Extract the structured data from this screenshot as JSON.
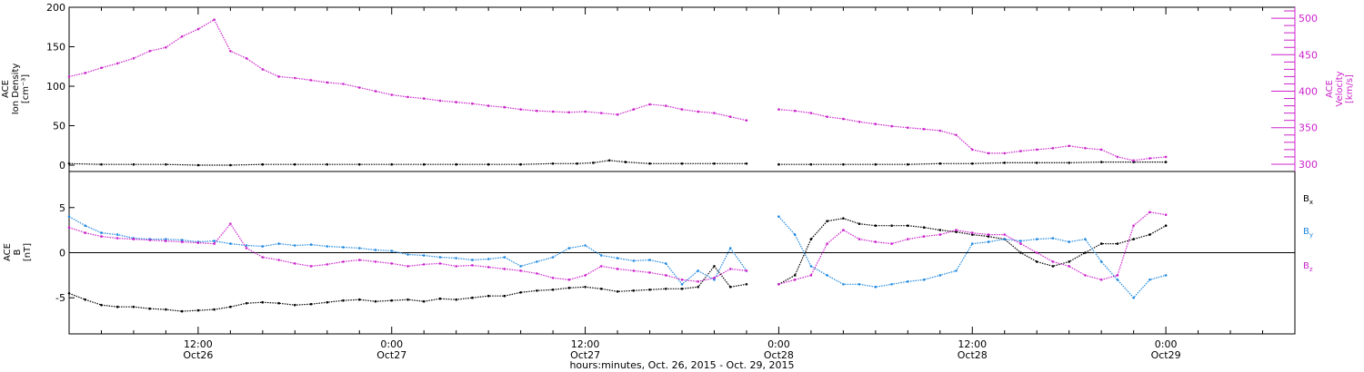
{
  "xaxis": {
    "title": "hours:minutes, Oct. 26, 2015 - Oct. 29, 2015",
    "ticks": [
      {
        "t": 12,
        "time": "12:00",
        "date": "Oct26"
      },
      {
        "t": 24,
        "time": "0:00",
        "date": "Oct27"
      },
      {
        "t": 36,
        "time": "12:00",
        "date": "Oct27"
      },
      {
        "t": 48,
        "time": "0:00",
        "date": "Oct28"
      },
      {
        "t": 60,
        "time": "12:00",
        "date": "Oct28"
      },
      {
        "t": 72,
        "time": "0:00",
        "date": "Oct29"
      }
    ]
  },
  "colors": {
    "black": "#000000",
    "magenta": "#cc22cc",
    "blue": "#1e88e0"
  },
  "chart_data": [
    {
      "type": "scatter",
      "panel": "top",
      "xlim": [
        4,
        80
      ],
      "left_axis": {
        "label_lines": [
          "ACE",
          "Ion Density",
          "[cm⁻³]"
        ],
        "ylim": [
          -8,
          200
        ],
        "ticks": [
          0,
          50,
          100,
          150,
          200
        ],
        "color": "#000000"
      },
      "right_axis": {
        "label_lines": [
          "ACE",
          "Velocity",
          "[km/s]"
        ],
        "ylim": [
          290,
          515
        ],
        "ticks": [
          300,
          350,
          400,
          450,
          500
        ],
        "color": "#cc22cc"
      },
      "series": [
        {
          "axis": "left",
          "color": "#000000",
          "x": [
            4,
            6,
            8,
            10,
            12,
            14,
            16,
            18,
            20,
            22,
            24,
            26,
            28,
            30,
            32,
            34,
            35.5,
            36.5,
            37.5,
            38.5,
            40,
            42,
            44,
            46,
            47.5,
            48,
            50,
            52,
            54,
            56,
            58,
            60,
            62,
            64,
            66,
            68,
            70,
            72
          ],
          "y": [
            2,
            1,
            1,
            1,
            0,
            0,
            1,
            1,
            1,
            1,
            1,
            1,
            1,
            1,
            1,
            2,
            2,
            3,
            6,
            4,
            2,
            2,
            2,
            2,
            null,
            1,
            1,
            1,
            1,
            1,
            2,
            2,
            3,
            3,
            3,
            4,
            4,
            4
          ]
        },
        {
          "axis": "right",
          "color": "#cc22cc",
          "x": [
            4,
            5,
            6,
            7,
            8,
            9,
            10,
            11,
            12,
            13,
            14,
            15,
            16,
            17,
            18,
            19,
            20,
            21,
            22,
            23,
            24,
            25,
            26,
            27,
            28,
            29,
            30,
            31,
            32,
            33,
            34,
            35,
            36,
            37,
            38,
            39,
            40,
            41,
            42,
            43,
            44,
            45,
            46,
            47.5,
            48,
            49,
            50,
            51,
            52,
            53,
            54,
            55,
            56,
            57,
            58,
            59,
            60,
            61,
            62,
            63,
            64,
            65,
            66,
            67,
            68,
            69,
            70,
            71,
            72
          ],
          "y": [
            420,
            425,
            432,
            438,
            445,
            455,
            460,
            475,
            485,
            498,
            455,
            445,
            430,
            420,
            418,
            415,
            412,
            410,
            405,
            400,
            395,
            392,
            390,
            387,
            385,
            383,
            380,
            378,
            375,
            373,
            372,
            371,
            372,
            370,
            368,
            375,
            382,
            380,
            375,
            372,
            370,
            365,
            360,
            null,
            375,
            373,
            370,
            365,
            362,
            358,
            355,
            352,
            350,
            348,
            346,
            340,
            320,
            315,
            315,
            318,
            320,
            322,
            325,
            322,
            320,
            310,
            305,
            308,
            310
          ]
        }
      ]
    },
    {
      "type": "scatter",
      "panel": "bottom",
      "xlim": [
        4,
        80
      ],
      "left_axis": {
        "label_lines": [
          "ACE",
          "B",
          "[nT]"
        ],
        "ylim": [
          -9,
          9
        ],
        "ticks": [
          -5,
          0,
          5
        ]
      },
      "zero_line": 0,
      "legend": [
        {
          "label": "B",
          "sub": "x",
          "color": "#000000"
        },
        {
          "label": "B",
          "sub": "y",
          "color": "#1e88e0"
        },
        {
          "label": "B",
          "sub": "z",
          "color": "#cc22cc"
        }
      ],
      "series": [
        {
          "name": "Bx",
          "color": "#000000",
          "x": [
            4,
            5,
            6,
            7,
            8,
            9,
            10,
            11,
            12,
            13,
            14,
            15,
            16,
            17,
            18,
            19,
            20,
            21,
            22,
            23,
            24,
            25,
            26,
            27,
            28,
            29,
            30,
            31,
            32,
            33,
            34,
            35,
            36,
            37,
            38,
            39,
            40,
            41,
            42,
            43,
            44,
            45,
            46,
            47.5,
            48,
            49,
            50,
            51,
            52,
            53,
            54,
            55,
            56,
            57,
            58,
            59,
            60,
            61,
            62,
            63,
            64,
            65,
            66,
            67,
            68,
            69,
            70,
            71,
            72
          ],
          "y": [
            -4.5,
            -5.2,
            -5.8,
            -6,
            -6,
            -6.2,
            -6.3,
            -6.5,
            -6.4,
            -6.3,
            -6,
            -5.6,
            -5.5,
            -5.6,
            -5.8,
            -5.7,
            -5.5,
            -5.3,
            -5.2,
            -5.4,
            -5.3,
            -5.2,
            -5.4,
            -5.1,
            -5.2,
            -5,
            -4.8,
            -4.8,
            -4.4,
            -4.2,
            -4.1,
            -3.9,
            -3.8,
            -4,
            -4.3,
            -4.2,
            -4.1,
            -4,
            -4,
            -3.8,
            -1.5,
            -3.8,
            -3.5,
            null,
            -3.5,
            -2.5,
            1.5,
            3.5,
            3.8,
            3.2,
            3,
            3,
            3,
            2.8,
            2.5,
            2.3,
            2,
            1.8,
            1.5,
            0,
            -1,
            -1.5,
            -1,
            0,
            1,
            1,
            1.5,
            2,
            3
          ]
        },
        {
          "name": "By",
          "color": "#1e88e0",
          "x": [
            4,
            5,
            6,
            7,
            8,
            9,
            10,
            11,
            12,
            13,
            14,
            15,
            16,
            17,
            18,
            19,
            20,
            21,
            22,
            23,
            24,
            25,
            26,
            27,
            28,
            29,
            30,
            31,
            32,
            33,
            34,
            35,
            36,
            37,
            38,
            39,
            40,
            41,
            42,
            43,
            44,
            45,
            46,
            47.5,
            48,
            49,
            50,
            51,
            52,
            53,
            54,
            55,
            56,
            57,
            58,
            59,
            60,
            61,
            62,
            63,
            64,
            65,
            66,
            67,
            68,
            69,
            70,
            71,
            72
          ],
          "y": [
            4,
            3,
            2.2,
            2,
            1.6,
            1.5,
            1.5,
            1.4,
            1.2,
            1.3,
            1,
            0.8,
            0.7,
            1,
            0.8,
            0.9,
            0.7,
            0.6,
            0.5,
            0.3,
            0.2,
            -0.2,
            -0.3,
            -0.5,
            -0.6,
            -0.8,
            -0.7,
            -0.5,
            -1.5,
            -1,
            -0.5,
            0.5,
            0.8,
            -0.3,
            -0.6,
            -0.9,
            -0.8,
            -1.2,
            -3.5,
            -2,
            -3,
            0.5,
            -2,
            null,
            4,
            2,
            -1.5,
            -2.5,
            -3.5,
            -3.5,
            -3.8,
            -3.5,
            -3.2,
            -3,
            -2.5,
            -2,
            1,
            1.2,
            1.5,
            1.3,
            1.5,
            1.6,
            1.2,
            1.5,
            -1,
            -3,
            -5,
            -3,
            -2.5
          ]
        },
        {
          "name": "Bz",
          "color": "#cc22cc",
          "x": [
            4,
            5,
            6,
            7,
            8,
            9,
            10,
            11,
            12,
            13,
            14,
            15,
            16,
            17,
            18,
            19,
            20,
            21,
            22,
            23,
            24,
            25,
            26,
            27,
            28,
            29,
            30,
            31,
            32,
            33,
            34,
            35,
            36,
            37,
            38,
            39,
            40,
            41,
            42,
            43,
            44,
            45,
            46,
            47.5,
            48,
            49,
            50,
            51,
            52,
            53,
            54,
            55,
            56,
            57,
            58,
            59,
            60,
            61,
            62,
            63,
            64,
            65,
            66,
            67,
            68,
            69,
            70,
            71,
            72
          ],
          "y": [
            2.8,
            2.2,
            1.8,
            1.6,
            1.5,
            1.4,
            1.3,
            1.2,
            1.1,
            1,
            3.2,
            0.5,
            -0.5,
            -0.8,
            -1.2,
            -1.5,
            -1.3,
            -1,
            -0.8,
            -1,
            -1.2,
            -1.5,
            -1.3,
            -1.2,
            -1.5,
            -1.4,
            -1.6,
            -1.8,
            -2,
            -2.3,
            -2.8,
            -3,
            -2.5,
            -1.5,
            -1.8,
            -2,
            -2.2,
            -2.5,
            -3,
            -3.2,
            -2.8,
            -1.8,
            -2,
            null,
            -3.5,
            -3,
            -2.5,
            1,
            2.5,
            1.5,
            1.2,
            1,
            1.5,
            1.8,
            2,
            2.5,
            2.2,
            2,
            2,
            1,
            0,
            -1,
            -1.5,
            -2.5,
            -3,
            -2.5,
            3,
            4.5,
            4.2
          ]
        }
      ]
    }
  ]
}
